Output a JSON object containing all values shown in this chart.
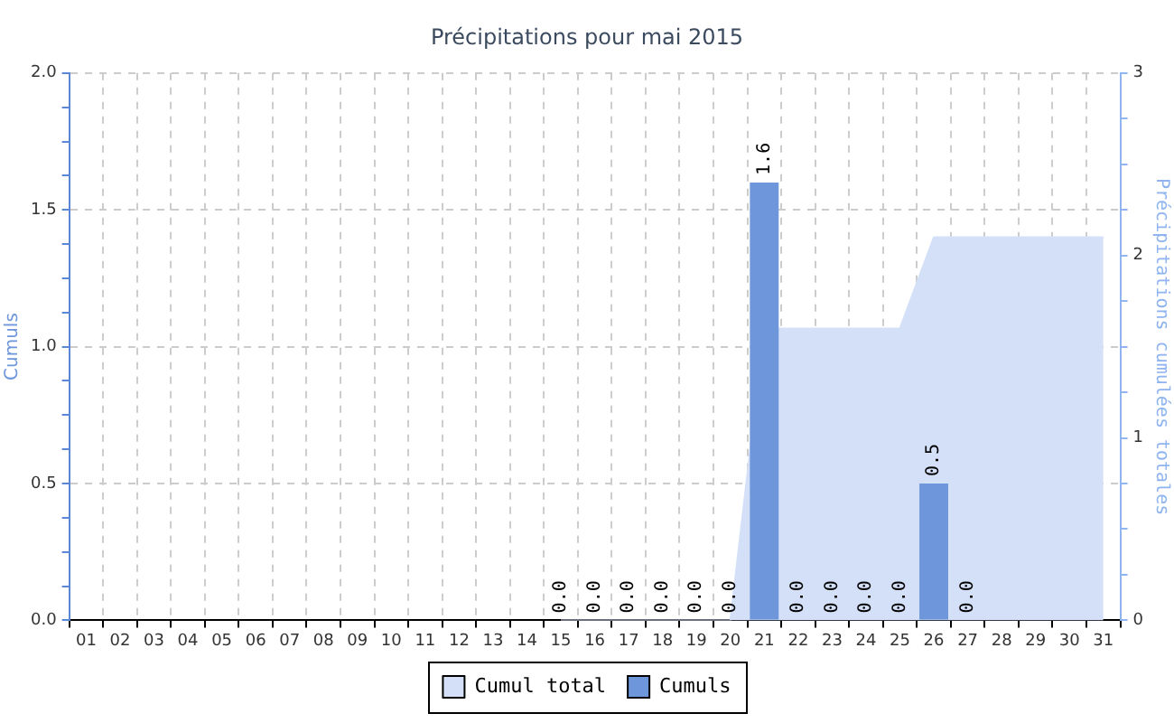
{
  "chart_data": {
    "type": "bar",
    "title": "Précipitations pour mai 2015",
    "ylabel": "Cumuls",
    "y2label": "Précipitations cumulées totales",
    "categories": [
      "01",
      "02",
      "03",
      "04",
      "05",
      "06",
      "07",
      "08",
      "09",
      "10",
      "11",
      "12",
      "13",
      "14",
      "15",
      "16",
      "17",
      "18",
      "19",
      "20",
      "21",
      "22",
      "23",
      "24",
      "25",
      "26",
      "27",
      "28",
      "29",
      "30",
      "31"
    ],
    "series": [
      {
        "name": "Cumul total",
        "type": "area",
        "axis": "y2",
        "color": "#d3e0f8",
        "values": [
          null,
          null,
          null,
          null,
          null,
          null,
          null,
          null,
          null,
          null,
          null,
          null,
          null,
          null,
          0,
          0,
          0,
          0,
          0,
          0,
          1.6,
          1.6,
          1.6,
          1.6,
          1.6,
          2.1,
          2.1,
          2.1,
          2.1,
          2.1,
          2.1
        ]
      },
      {
        "name": "Cumuls",
        "color": "#6d96db",
        "values": [
          null,
          null,
          null,
          null,
          null,
          null,
          null,
          null,
          null,
          null,
          null,
          null,
          null,
          null,
          0,
          0,
          0,
          0,
          0,
          0,
          1.6,
          0,
          0,
          0,
          0,
          0.5,
          0,
          null,
          null,
          null,
          null
        ],
        "value_labels": [
          null,
          null,
          null,
          null,
          null,
          null,
          null,
          null,
          null,
          null,
          null,
          null,
          null,
          null,
          "0.0",
          "0.0",
          "0.0",
          "0.0",
          "0.0",
          "0.0",
          "1.6",
          "0.0",
          "0.0",
          "0.0",
          "0.0",
          "0.5",
          "0.0",
          null,
          null,
          null,
          null
        ]
      }
    ],
    "ylim": [
      0,
      2
    ],
    "yticks": [
      {
        "value": 0,
        "label": "0.0"
      },
      {
        "value": 0.125,
        "label": null
      },
      {
        "value": 0.25,
        "label": null
      },
      {
        "value": 0.375,
        "label": null
      },
      0.5,
      {
        "value": 0.625,
        "label": null
      },
      {
        "value": 0.75,
        "label": null
      },
      {
        "value": 0.875,
        "label": null
      },
      {
        "value": 1,
        "label": "1.0"
      },
      {
        "value": 1.125,
        "label": null
      },
      {
        "value": 1.25,
        "label": null
      },
      {
        "value": 1.375,
        "label": null
      },
      1.5,
      {
        "value": 1.625,
        "label": null
      },
      {
        "value": 1.75,
        "label": null
      },
      {
        "value": 1.875,
        "label": null
      },
      {
        "value": 2,
        "label": "2.0"
      }
    ],
    "y2lim": [
      0,
      3
    ],
    "y2ticks": [
      0,
      {
        "value": 0.25,
        "label": null
      },
      {
        "value": 0.5,
        "label": null
      },
      {
        "value": 0.75,
        "label": null
      },
      1,
      {
        "value": 1.25,
        "label": null
      },
      {
        "value": 1.5,
        "label": null
      },
      {
        "value": 1.75,
        "label": null
      },
      2,
      {
        "value": 2.25,
        "label": null
      },
      {
        "value": 2.5,
        "label": null
      },
      {
        "value": 2.75,
        "label": null
      },
      3
    ],
    "grid": true,
    "legend": "bottom"
  }
}
